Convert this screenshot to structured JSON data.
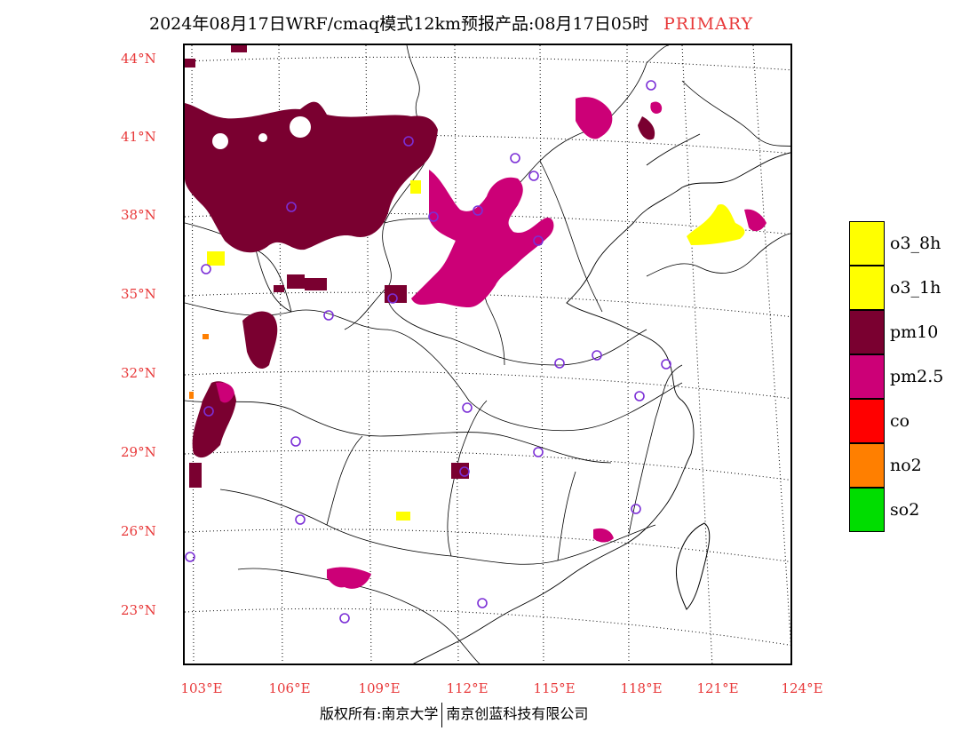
{
  "title": {
    "text": "2024年08月17日WRF/cmaq模式12km预报产品:08月17日05时",
    "primary": "PRIMARY"
  },
  "colors": {
    "pm10": "#7a0030",
    "pm25": "#cc0077",
    "o3": "#ffff00",
    "co": "#ff0000",
    "no2": "#ff7f00",
    "so2": "#00dd00",
    "axis_labels": "#e8393a",
    "station_marker": "#7b2fd6"
  },
  "lat_labels": [
    "44°N",
    "41°N",
    "38°N",
    "35°N",
    "32°N",
    "29°N",
    "26°N",
    "23°N"
  ],
  "lon_labels": [
    "103°E",
    "106°E",
    "109°E",
    "112°E",
    "115°E",
    "118°E",
    "121°E",
    "124°E"
  ],
  "legend": [
    {
      "label": "o3_8h",
      "color": "#ffff00"
    },
    {
      "label": "o3_1h",
      "color": "#ffff00"
    },
    {
      "label": "pm10",
      "color": "#7a0030"
    },
    {
      "label": "pm2.5",
      "color": "#cc0077"
    },
    {
      "label": "co",
      "color": "#ff0000"
    },
    {
      "label": "no2",
      "color": "#ff7f00"
    },
    {
      "label": "so2",
      "color": "#00dd00"
    }
  ],
  "copyright": {
    "left": "版权所有:南京大学",
    "right": "南京创蓝科技有限公司"
  }
}
